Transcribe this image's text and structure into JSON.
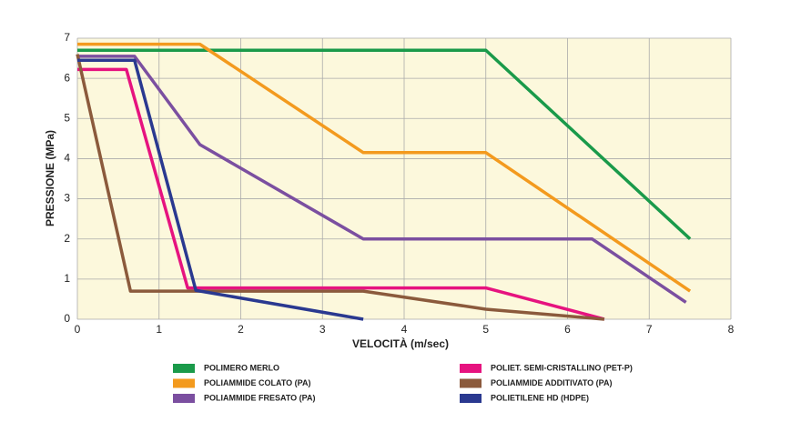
{
  "chart_data": {
    "type": "line",
    "x_label": "VELOCITÀ  (m/sec)",
    "y_label": "PRESSIONE (MPa)",
    "xlim": [
      0,
      8
    ],
    "xticks": [
      0,
      1,
      2,
      3,
      4,
      5,
      6,
      7,
      8
    ],
    "ylim": [
      0,
      7
    ],
    "yticks": [
      0,
      1,
      2,
      3,
      4,
      5,
      6,
      7
    ],
    "grid": true,
    "series": [
      {
        "name": "POLIMERO MERLO",
        "color": "#1a9a4a",
        "x": [
          0,
          5,
          7.5
        ],
        "values": [
          6.7,
          6.7,
          2.0
        ]
      },
      {
        "name": "POLIAMMIDE COLATO (PA)",
        "color": "#f39a1e",
        "x": [
          0,
          1.5,
          3.5,
          5,
          7.5
        ],
        "values": [
          6.85,
          6.85,
          4.15,
          4.15,
          0.7
        ]
      },
      {
        "name": "POLIAMMIDE FRESATO (PA)",
        "color": "#7b4fa0",
        "x": [
          0,
          0.7,
          1.5,
          3.5,
          6.3,
          7.45
        ],
        "values": [
          6.55,
          6.55,
          4.35,
          2.0,
          2.0,
          0.42
        ]
      },
      {
        "name": "POLIET. SEMI-CRISTALLINO (PET-P)",
        "color": "#e6137f",
        "x": [
          0,
          0.6,
          1.35,
          5,
          6.45
        ],
        "values": [
          6.22,
          6.22,
          0.78,
          0.78,
          0
        ]
      },
      {
        "name": "POLIAMMIDE ADDITIVATO (PA)",
        "color": "#8b5a3c",
        "x": [
          0,
          0.65,
          3.5,
          5,
          6.45
        ],
        "values": [
          6.6,
          0.7,
          0.7,
          0.25,
          0
        ]
      },
      {
        "name": "POLIETILENE HD (HDPE)",
        "color": "#2a3990",
        "x": [
          0,
          0.7,
          1.45,
          3.5
        ],
        "values": [
          6.45,
          6.45,
          0.72,
          0
        ]
      }
    ]
  }
}
